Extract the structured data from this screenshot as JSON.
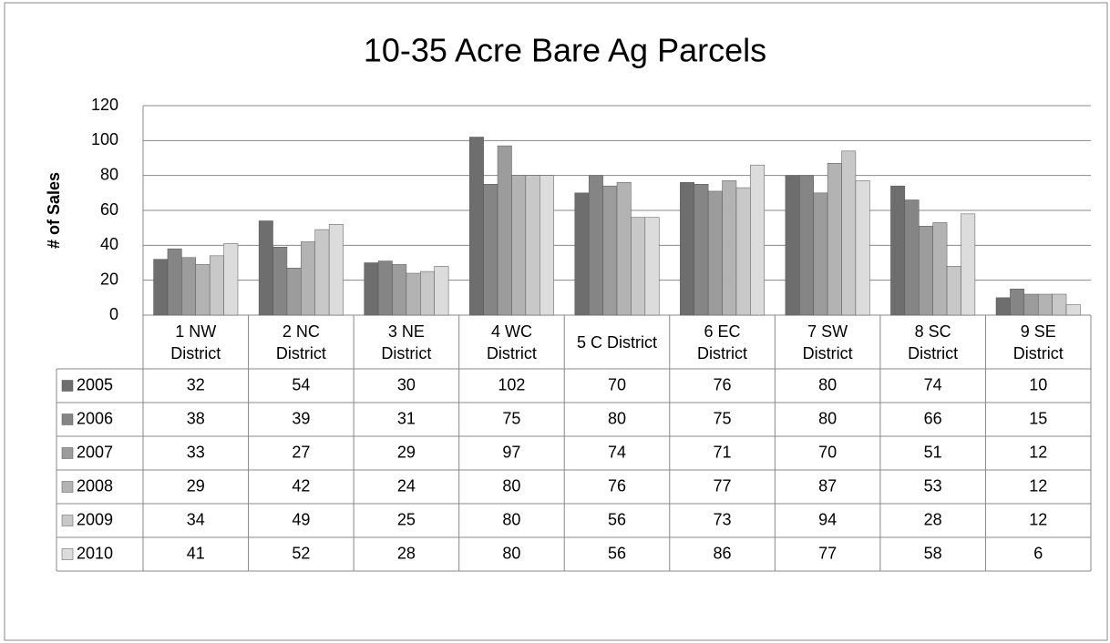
{
  "chart_data": {
    "type": "bar",
    "title": "10-35 Acre Bare Ag Parcels",
    "y_label": "# of Sales",
    "categories": [
      "1 NW District",
      "2 NC District",
      "3 NE District",
      "4 WC District",
      "5 C District",
      "6 EC District",
      "7 SW District",
      "8 SC District",
      "9 SE District"
    ],
    "series": [
      {
        "name": "2005",
        "color": "#6e6e6e",
        "values": [
          32,
          54,
          30,
          102,
          70,
          76,
          80,
          74,
          10
        ]
      },
      {
        "name": "2006",
        "color": "#858585",
        "values": [
          38,
          39,
          31,
          75,
          80,
          75,
          80,
          66,
          15
        ]
      },
      {
        "name": "2007",
        "color": "#9c9c9c",
        "values": [
          33,
          27,
          29,
          97,
          74,
          71,
          70,
          51,
          12
        ]
      },
      {
        "name": "2008",
        "color": "#b3b3b3",
        "values": [
          29,
          42,
          24,
          80,
          76,
          77,
          87,
          53,
          12
        ]
      },
      {
        "name": "2009",
        "color": "#c8c8c8",
        "values": [
          34,
          49,
          25,
          80,
          56,
          73,
          94,
          28,
          12
        ]
      },
      {
        "name": "2010",
        "color": "#dcdcdc",
        "values": [
          41,
          52,
          28,
          80,
          56,
          86,
          77,
          58,
          6
        ]
      }
    ],
    "ylim": [
      0,
      120
    ],
    "yticks": [
      0,
      20,
      40,
      60,
      80,
      100,
      120
    ],
    "grid": true,
    "data_table": true
  }
}
